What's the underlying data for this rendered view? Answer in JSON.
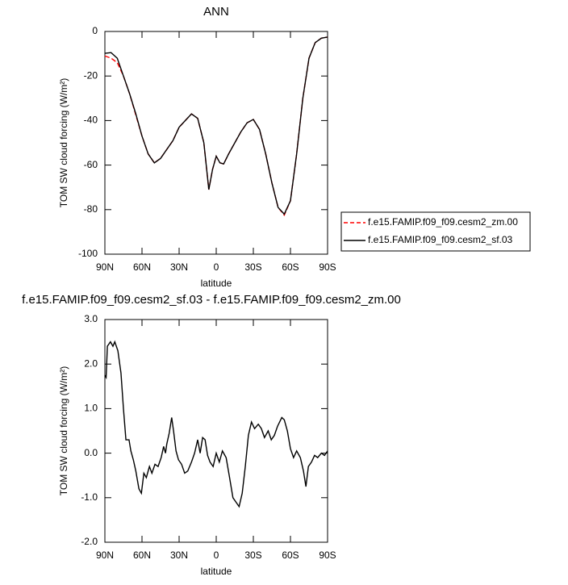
{
  "chart_data": [
    {
      "type": "line",
      "title": "ANN",
      "xlabel": "latitude",
      "ylabel": "TOM SW cloud forcing (W/m²)",
      "x": [
        90,
        85,
        80,
        75,
        70,
        65,
        60,
        55,
        50,
        45,
        40,
        35,
        30,
        25,
        20,
        15,
        10,
        6,
        3,
        0,
        -3,
        -6,
        -10,
        -15,
        -20,
        -25,
        -30,
        -35,
        -40,
        -45,
        -50,
        -55,
        -60,
        -65,
        -70,
        -75,
        -80,
        -85,
        -90
      ],
      "xlim": [
        90,
        -90
      ],
      "xticks": [
        {
          "value": 90,
          "label": "90N"
        },
        {
          "value": 60,
          "label": "60N"
        },
        {
          "value": 30,
          "label": "30N"
        },
        0,
        {
          "value": -30,
          "label": "30S"
        },
        {
          "value": -60,
          "label": "60S"
        },
        {
          "value": -90,
          "label": "90S"
        }
      ],
      "ylim": [
        -100,
        0
      ],
      "yticks": [
        -100,
        -80,
        -60,
        -40,
        -20,
        0
      ],
      "legend": "right",
      "series": [
        {
          "name": "f.e15.FAMIP.f09_f09.cesm2_zm.00",
          "color": "#ff0000",
          "line_style": "dashed",
          "values": [
            -11,
            -12,
            -14,
            -20,
            -28,
            -37.5,
            -47,
            -55,
            -59,
            -57,
            -53,
            -49,
            -43,
            -40,
            -37,
            -39,
            -50,
            -71,
            -62,
            -56,
            -59,
            -59.5,
            -55,
            -50,
            -45,
            -41,
            -39.5,
            -44,
            -55,
            -68,
            -79,
            -82.5,
            -76,
            -55,
            -30,
            -12,
            -5,
            -3,
            -2.5
          ]
        },
        {
          "name": "f.e15.FAMIP.f09_f09.cesm2_sf.03",
          "color": "#000000",
          "line_style": "solid",
          "values": [
            -9.8,
            -9.5,
            -12,
            -20,
            -28,
            -37,
            -47,
            -55,
            -59,
            -57,
            -53,
            -49,
            -43,
            -40,
            -37,
            -39,
            -50,
            -71,
            -62,
            -56,
            -59,
            -59.5,
            -55,
            -50,
            -45,
            -41,
            -39.5,
            -44,
            -55,
            -68,
            -79,
            -82,
            -76,
            -55,
            -30,
            -12,
            -5,
            -3,
            -2.5
          ]
        }
      ]
    },
    {
      "type": "line",
      "title": "f.e15.FAMIP.f09_f09.cesm2_sf.03 - f.e15.FAMIP.f09_f09.cesm2_zm.00",
      "xlabel": "latitude",
      "ylabel": "TOM SW cloud forcing (W/m²)",
      "x": [
        90,
        89,
        88,
        85.5,
        83.5,
        82,
        79.5,
        77,
        75,
        73,
        70.5,
        69,
        67,
        65,
        62.5,
        60.5,
        58.5,
        56.5,
        54,
        52,
        49.5,
        47,
        44.5,
        42.5,
        41,
        40,
        38,
        36,
        34.5,
        32.5,
        30.5,
        28,
        25.5,
        23,
        20,
        17.5,
        15,
        13,
        11,
        9,
        7,
        5,
        2.5,
        0,
        -2.5,
        -5,
        -8,
        -10.5,
        -13.5,
        -18.5,
        -21,
        -23.5,
        -26,
        -28.5,
        -31,
        -34,
        -36.5,
        -39,
        -42,
        -44.5,
        -47,
        -49.5,
        -53,
        -55,
        -57.5,
        -60,
        -62.5,
        -65,
        -68,
        -70.5,
        -72.5,
        -74.5,
        -77,
        -79.5,
        -82,
        -85,
        -87.5,
        -90
      ],
      "xlim": [
        90,
        -90
      ],
      "xticks": [
        {
          "value": 90,
          "label": "90N"
        },
        {
          "value": 60,
          "label": "60N"
        },
        {
          "value": 30,
          "label": "30N"
        },
        0,
        {
          "value": -30,
          "label": "30S"
        },
        {
          "value": -60,
          "label": "60S"
        },
        {
          "value": -90,
          "label": "90S"
        }
      ],
      "ylim": [
        -2,
        3
      ],
      "yticks": [
        {
          "value": -2,
          "label": "-2.0"
        },
        {
          "value": -1,
          "label": "-1.0"
        },
        {
          "value": 0,
          "label": "0.0"
        },
        {
          "value": 1,
          "label": "1.0"
        },
        {
          "value": 2,
          "label": "2.0"
        },
        {
          "value": 3,
          "label": "3.0"
        }
      ],
      "series": [
        {
          "color": "#000000",
          "line_style": "solid",
          "values": [
            1.75,
            1.7,
            2.4,
            2.5,
            2.4,
            2.5,
            2.3,
            1.8,
            1.0,
            0.3,
            0.3,
            0.05,
            -0.15,
            -0.4,
            -0.8,
            -0.9,
            -0.45,
            -0.55,
            -0.3,
            -0.45,
            -0.25,
            -0.3,
            -0.1,
            0.15,
            0.0,
            0.2,
            0.45,
            0.8,
            0.5,
            0.05,
            -0.15,
            -0.25,
            -0.45,
            -0.4,
            -0.2,
            0.0,
            0.3,
            0.0,
            0.35,
            0.3,
            -0.05,
            -0.2,
            -0.3,
            0.0,
            -0.2,
            0.05,
            -0.1,
            -0.5,
            -1.0,
            -1.2,
            -0.9,
            -0.3,
            0.4,
            0.7,
            0.55,
            0.65,
            0.55,
            0.35,
            0.5,
            0.3,
            0.4,
            0.6,
            0.8,
            0.75,
            0.5,
            0.1,
            -0.1,
            0.05,
            -0.1,
            -0.4,
            -0.75,
            -0.3,
            -0.2,
            -0.05,
            -0.1,
            0.0,
            -0.05,
            0.05
          ]
        }
      ]
    }
  ]
}
